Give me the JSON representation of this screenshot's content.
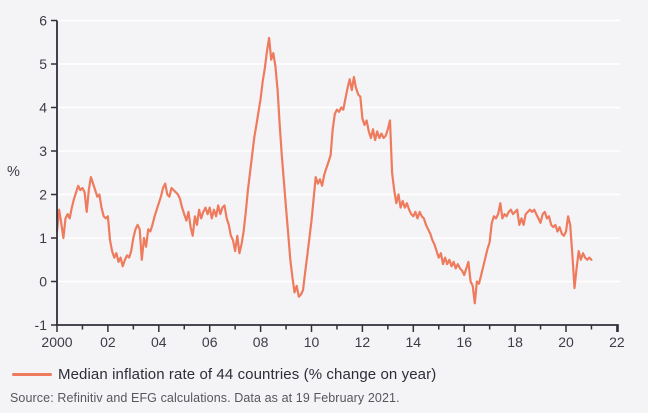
{
  "legend": {
    "label": "Median inflation rate of 44 countries (% change on year)"
  },
  "source": {
    "text": "Source: Refinitiv and EFG calculations. Data as at 19 February 2021."
  },
  "colors": {
    "background": "#F4F4F6",
    "grid": "#FFFFFF",
    "axis": "#30303C",
    "tick_text": "#3C3C48",
    "line": "#EF7B5E",
    "legend_text": "#2D2D3A",
    "source_text": "#56565E"
  },
  "chart_data": {
    "type": "line",
    "title": "",
    "xlabel": "",
    "ylabel": "%",
    "xlim": [
      2000,
      2022.3
    ],
    "ylim": [
      -1,
      6
    ],
    "grid": "horizontal-white-lines-at-integers-0-to-6",
    "legend_position": "bottom-left",
    "y_ticks": [
      {
        "v": -1,
        "label": "-1"
      },
      {
        "v": 0,
        "label": "0"
      },
      {
        "v": 1,
        "label": "1"
      },
      {
        "v": 2,
        "label": "2"
      },
      {
        "v": 3,
        "label": "3"
      },
      {
        "v": 4,
        "label": "4"
      },
      {
        "v": 5,
        "label": "5"
      },
      {
        "v": 6,
        "label": "6"
      }
    ],
    "x_ticks_major": [
      {
        "year": 2000,
        "label": "2000"
      },
      {
        "year": 2002,
        "label": "02"
      },
      {
        "year": 2004,
        "label": "04"
      },
      {
        "year": 2006,
        "label": "06"
      },
      {
        "year": 2008,
        "label": "08"
      },
      {
        "year": 2010,
        "label": "10"
      },
      {
        "year": 2012,
        "label": "12"
      },
      {
        "year": 2014,
        "label": "14"
      },
      {
        "year": 2016,
        "label": "16"
      },
      {
        "year": 2018,
        "label": "18"
      },
      {
        "year": 2020,
        "label": "20"
      },
      {
        "year": 2022,
        "label": "22"
      }
    ],
    "x_ticks_minor": [
      2001,
      2003,
      2005,
      2007,
      2009,
      2011,
      2013,
      2015,
      2017,
      2019,
      2021
    ],
    "series": [
      {
        "name": "Median inflation rate of 44 countries (% change on year)",
        "color": "#EF7B5E",
        "frequency": "monthly",
        "x_start": 2000.0,
        "x_step_years": 0.0833333,
        "values": [
          1.15,
          1.65,
          1.35,
          1.0,
          1.45,
          1.55,
          1.45,
          1.7,
          1.9,
          2.05,
          2.2,
          2.1,
          2.15,
          2.05,
          1.6,
          2.1,
          2.4,
          2.25,
          2.1,
          1.95,
          2.0,
          1.7,
          1.5,
          1.45,
          1.5,
          0.95,
          0.7,
          0.55,
          0.65,
          0.45,
          0.55,
          0.35,
          0.5,
          0.6,
          0.55,
          0.7,
          1.0,
          1.2,
          1.3,
          1.2,
          0.5,
          1.0,
          0.8,
          1.2,
          1.15,
          1.3,
          1.5,
          1.65,
          1.8,
          1.95,
          2.15,
          2.25,
          2.0,
          1.95,
          2.15,
          2.1,
          2.05,
          2.0,
          1.9,
          1.7,
          1.55,
          1.4,
          1.6,
          1.25,
          1.05,
          1.5,
          1.3,
          1.65,
          1.45,
          1.6,
          1.7,
          1.55,
          1.7,
          1.45,
          1.65,
          1.5,
          1.75,
          1.55,
          1.7,
          1.75,
          1.45,
          1.3,
          1.05,
          0.95,
          0.7,
          1.05,
          0.65,
          0.85,
          1.15,
          1.6,
          2.1,
          2.5,
          2.9,
          3.3,
          3.6,
          3.9,
          4.2,
          4.6,
          4.9,
          5.3,
          5.6,
          5.1,
          5.25,
          4.95,
          4.4,
          3.6,
          2.9,
          2.3,
          1.7,
          1.1,
          0.5,
          0.1,
          -0.25,
          -0.1,
          -0.35,
          -0.3,
          -0.2,
          0.2,
          0.6,
          1.0,
          1.4,
          1.9,
          2.4,
          2.25,
          2.35,
          2.2,
          2.45,
          2.6,
          2.75,
          2.9,
          3.5,
          3.85,
          3.95,
          3.9,
          4.0,
          3.95,
          4.2,
          4.45,
          4.65,
          4.4,
          4.7,
          4.45,
          4.3,
          4.25,
          3.75,
          3.6,
          3.7,
          3.45,
          3.3,
          3.5,
          3.25,
          3.45,
          3.3,
          3.4,
          3.3,
          3.35,
          3.5,
          3.7,
          2.5,
          2.1,
          1.8,
          2.0,
          1.7,
          1.85,
          1.7,
          1.8,
          1.65,
          1.55,
          1.5,
          1.6,
          1.45,
          1.6,
          1.5,
          1.45,
          1.3,
          1.2,
          1.1,
          0.95,
          0.85,
          0.7,
          0.55,
          0.65,
          0.4,
          0.55,
          0.4,
          0.5,
          0.35,
          0.45,
          0.3,
          0.4,
          0.3,
          0.25,
          0.15,
          0.3,
          0.45,
          0.0,
          -0.1,
          -0.5,
          0.0,
          -0.05,
          0.15,
          0.35,
          0.55,
          0.75,
          0.9,
          1.35,
          1.5,
          1.45,
          1.55,
          1.8,
          1.45,
          1.55,
          1.5,
          1.6,
          1.65,
          1.55,
          1.6,
          1.65,
          1.3,
          1.45,
          1.3,
          1.55,
          1.6,
          1.65,
          1.6,
          1.65,
          1.55,
          1.45,
          1.35,
          1.55,
          1.6,
          1.45,
          1.5,
          1.3,
          1.25,
          1.3,
          1.15,
          1.25,
          1.1,
          1.05,
          1.15,
          1.5,
          1.3,
          0.6,
          -0.15,
          0.3,
          0.7,
          0.5,
          0.65,
          0.55,
          0.5,
          0.55,
          0.5
        ]
      }
    ]
  }
}
